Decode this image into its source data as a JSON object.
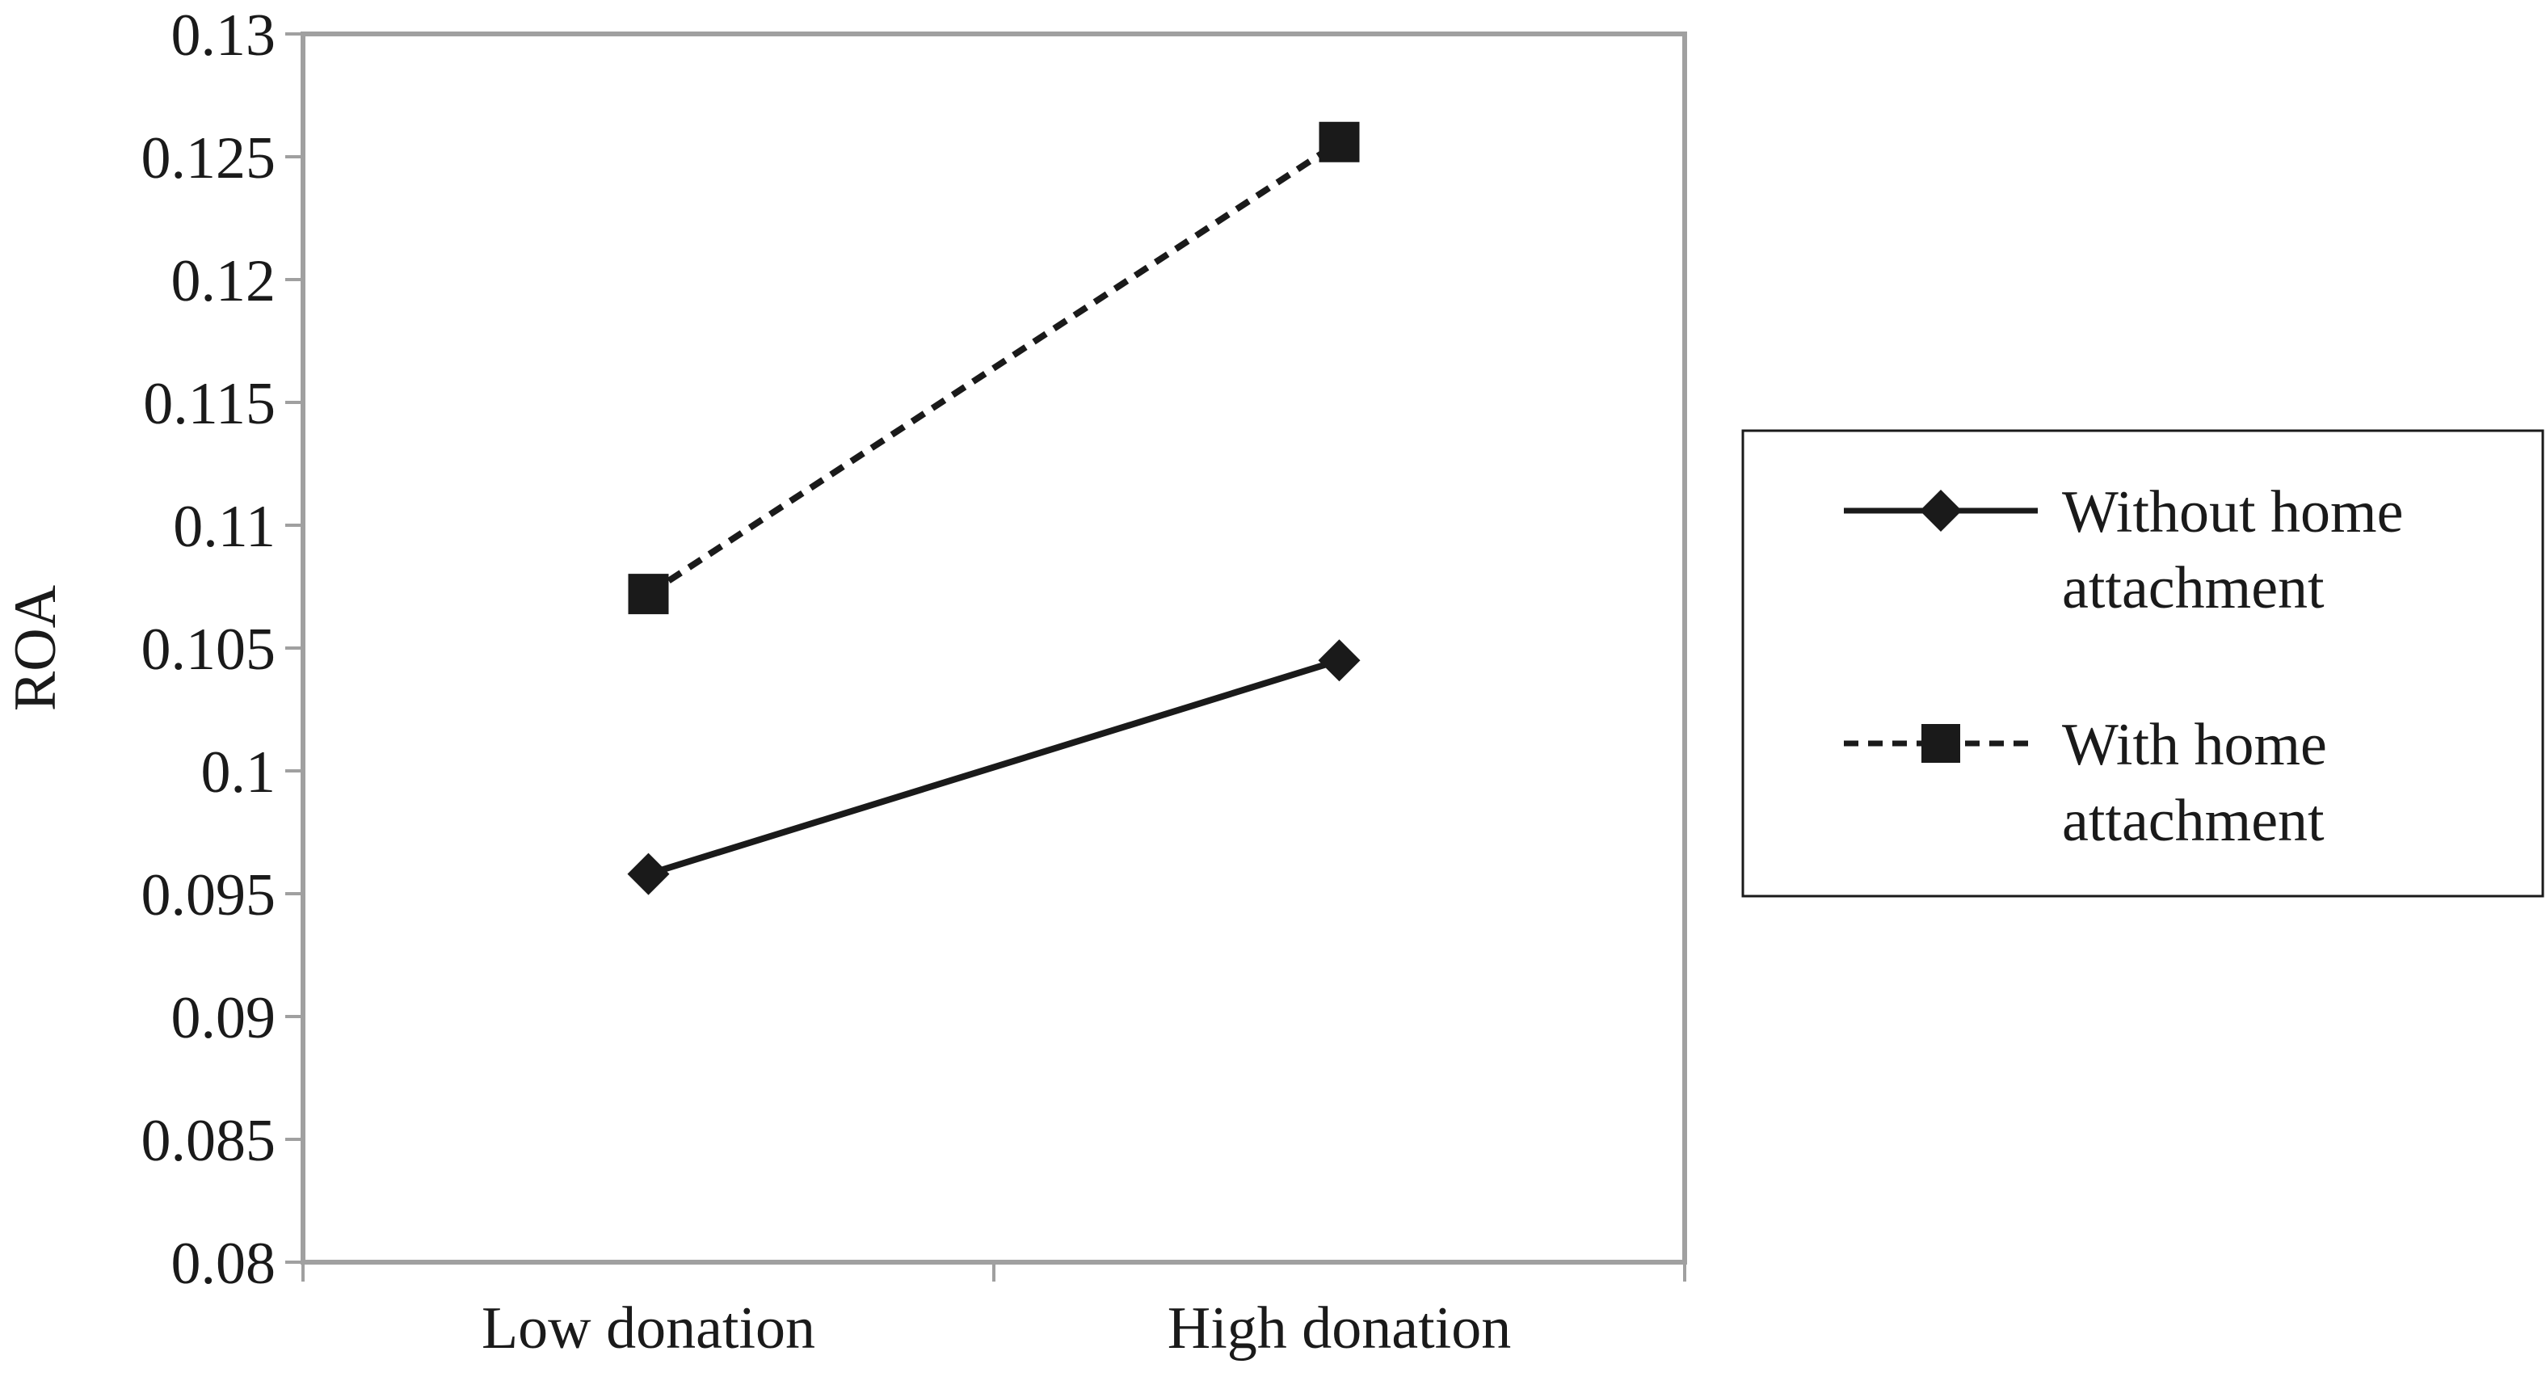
{
  "chart_data": {
    "type": "line",
    "categories": [
      "Low donation",
      "High donation"
    ],
    "ylabel": "ROA",
    "xlabel": "",
    "ylim": [
      0.08,
      0.13
    ],
    "y_ticks": [
      "0.08",
      "0.085",
      "0.09",
      "0.095",
      "0.1",
      "0.105",
      "0.11",
      "0.115",
      "0.12",
      "0.125",
      "0.13"
    ],
    "grid": false,
    "legend_position": "right",
    "series": [
      {
        "name_lines": [
          "Without home",
          "attachment"
        ],
        "values": [
          0.0958,
          0.1045
        ],
        "marker": "diamond",
        "line_style": "solid",
        "color": "#1a1a1a"
      },
      {
        "name_lines": [
          "With home",
          "attachment"
        ],
        "values": [
          0.1072,
          0.1256
        ],
        "marker": "square",
        "line_style": "dashed",
        "color": "#1a1a1a"
      }
    ],
    "axis_color": "#a0a0a0",
    "frame_color": "#a0a0a0"
  }
}
